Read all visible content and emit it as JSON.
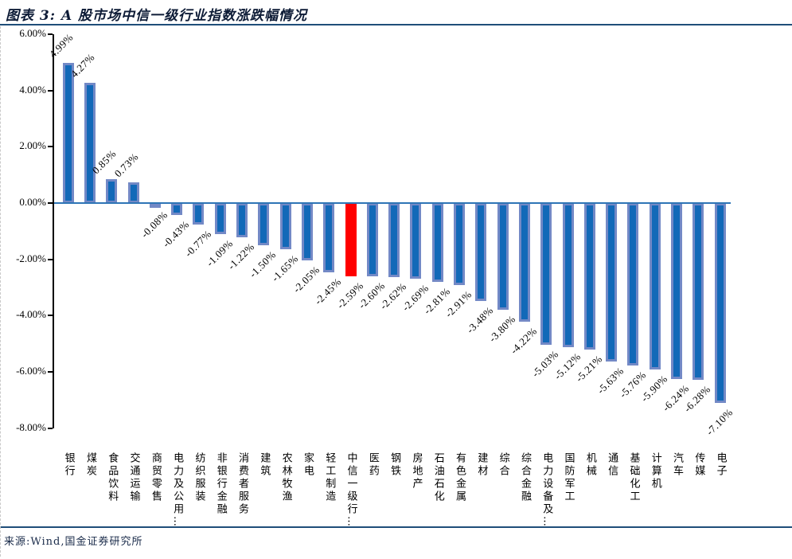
{
  "page": {
    "title": "图表 3: A 股市场中信一级行业指数涨跌幅情况",
    "source": "来源:Wind,国金证券研究所"
  },
  "colors": {
    "bar_fill": "#1269B8",
    "bar_edge": "#7389C6",
    "highlight": "#FF0000",
    "zero_line": "#2E75B6",
    "rule": "#1F4E79",
    "axis": "#000000"
  },
  "chart_data": {
    "type": "bar",
    "title": "A股市场中信一级行业指数涨跌幅情况",
    "xlabel": "",
    "ylabel": "",
    "grid": false,
    "legend": false,
    "ylim": [
      -8,
      6
    ],
    "ytick_values": [
      6,
      4,
      2,
      0,
      -2,
      -4,
      -6,
      -8
    ],
    "ytick_labels": [
      "6.00%",
      "4.00%",
      "2.00%",
      "0.00%",
      "-2.00%",
      "-4.00%",
      "-6.00%",
      "-8.00%"
    ],
    "categories": [
      "银行",
      "煤炭",
      "食品饮料",
      "交通运输",
      "商贸零售",
      "电力及公用…",
      "纺织服装",
      "非银行金融",
      "消费者服务",
      "建筑",
      "农林牧渔",
      "家电",
      "轻工制造",
      "中信一级行…",
      "医药",
      "钢铁",
      "房地产",
      "石油石化",
      "有色金属",
      "建材",
      "综合",
      "综合金融",
      "电力设备及…",
      "国防军工",
      "机械",
      "通信",
      "基础化工",
      "计算机",
      "汽车",
      "传媒",
      "电子"
    ],
    "values": [
      4.99,
      4.27,
      0.85,
      0.73,
      -0.08,
      -0.43,
      -0.77,
      -1.09,
      -1.22,
      -1.5,
      -1.65,
      -2.05,
      -2.45,
      -2.59,
      -2.6,
      -2.62,
      -2.69,
      -2.81,
      -2.91,
      -3.48,
      -3.8,
      -4.22,
      -5.03,
      -5.12,
      -5.21,
      -5.63,
      -5.76,
      -5.9,
      -6.24,
      -6.28,
      -7.1
    ],
    "value_labels": [
      "4.99%",
      "4.27%",
      "0.85%",
      "0.73%",
      "-0.08%",
      "-0.43%",
      "-0.77%",
      "-1.09%",
      "-1.22%",
      "-1.50%",
      "-1.65%",
      "-2.05%",
      "-2.45%",
      "-2.59%",
      "-2.60%",
      "-2.62%",
      "-2.69%",
      "-2.81%",
      "-2.91%",
      "-3.48%",
      "-3.80%",
      "-4.22%",
      "-5.03%",
      "-5.12%",
      "-5.21%",
      "-5.63%",
      "-5.76%",
      "-5.90%",
      "-6.24%",
      "-6.28%",
      "-7.10%"
    ],
    "highlight_index": 13,
    "highlight_category": "中信一级行…",
    "bar_color": "#1269B8",
    "highlight_color": "#FF0000"
  }
}
